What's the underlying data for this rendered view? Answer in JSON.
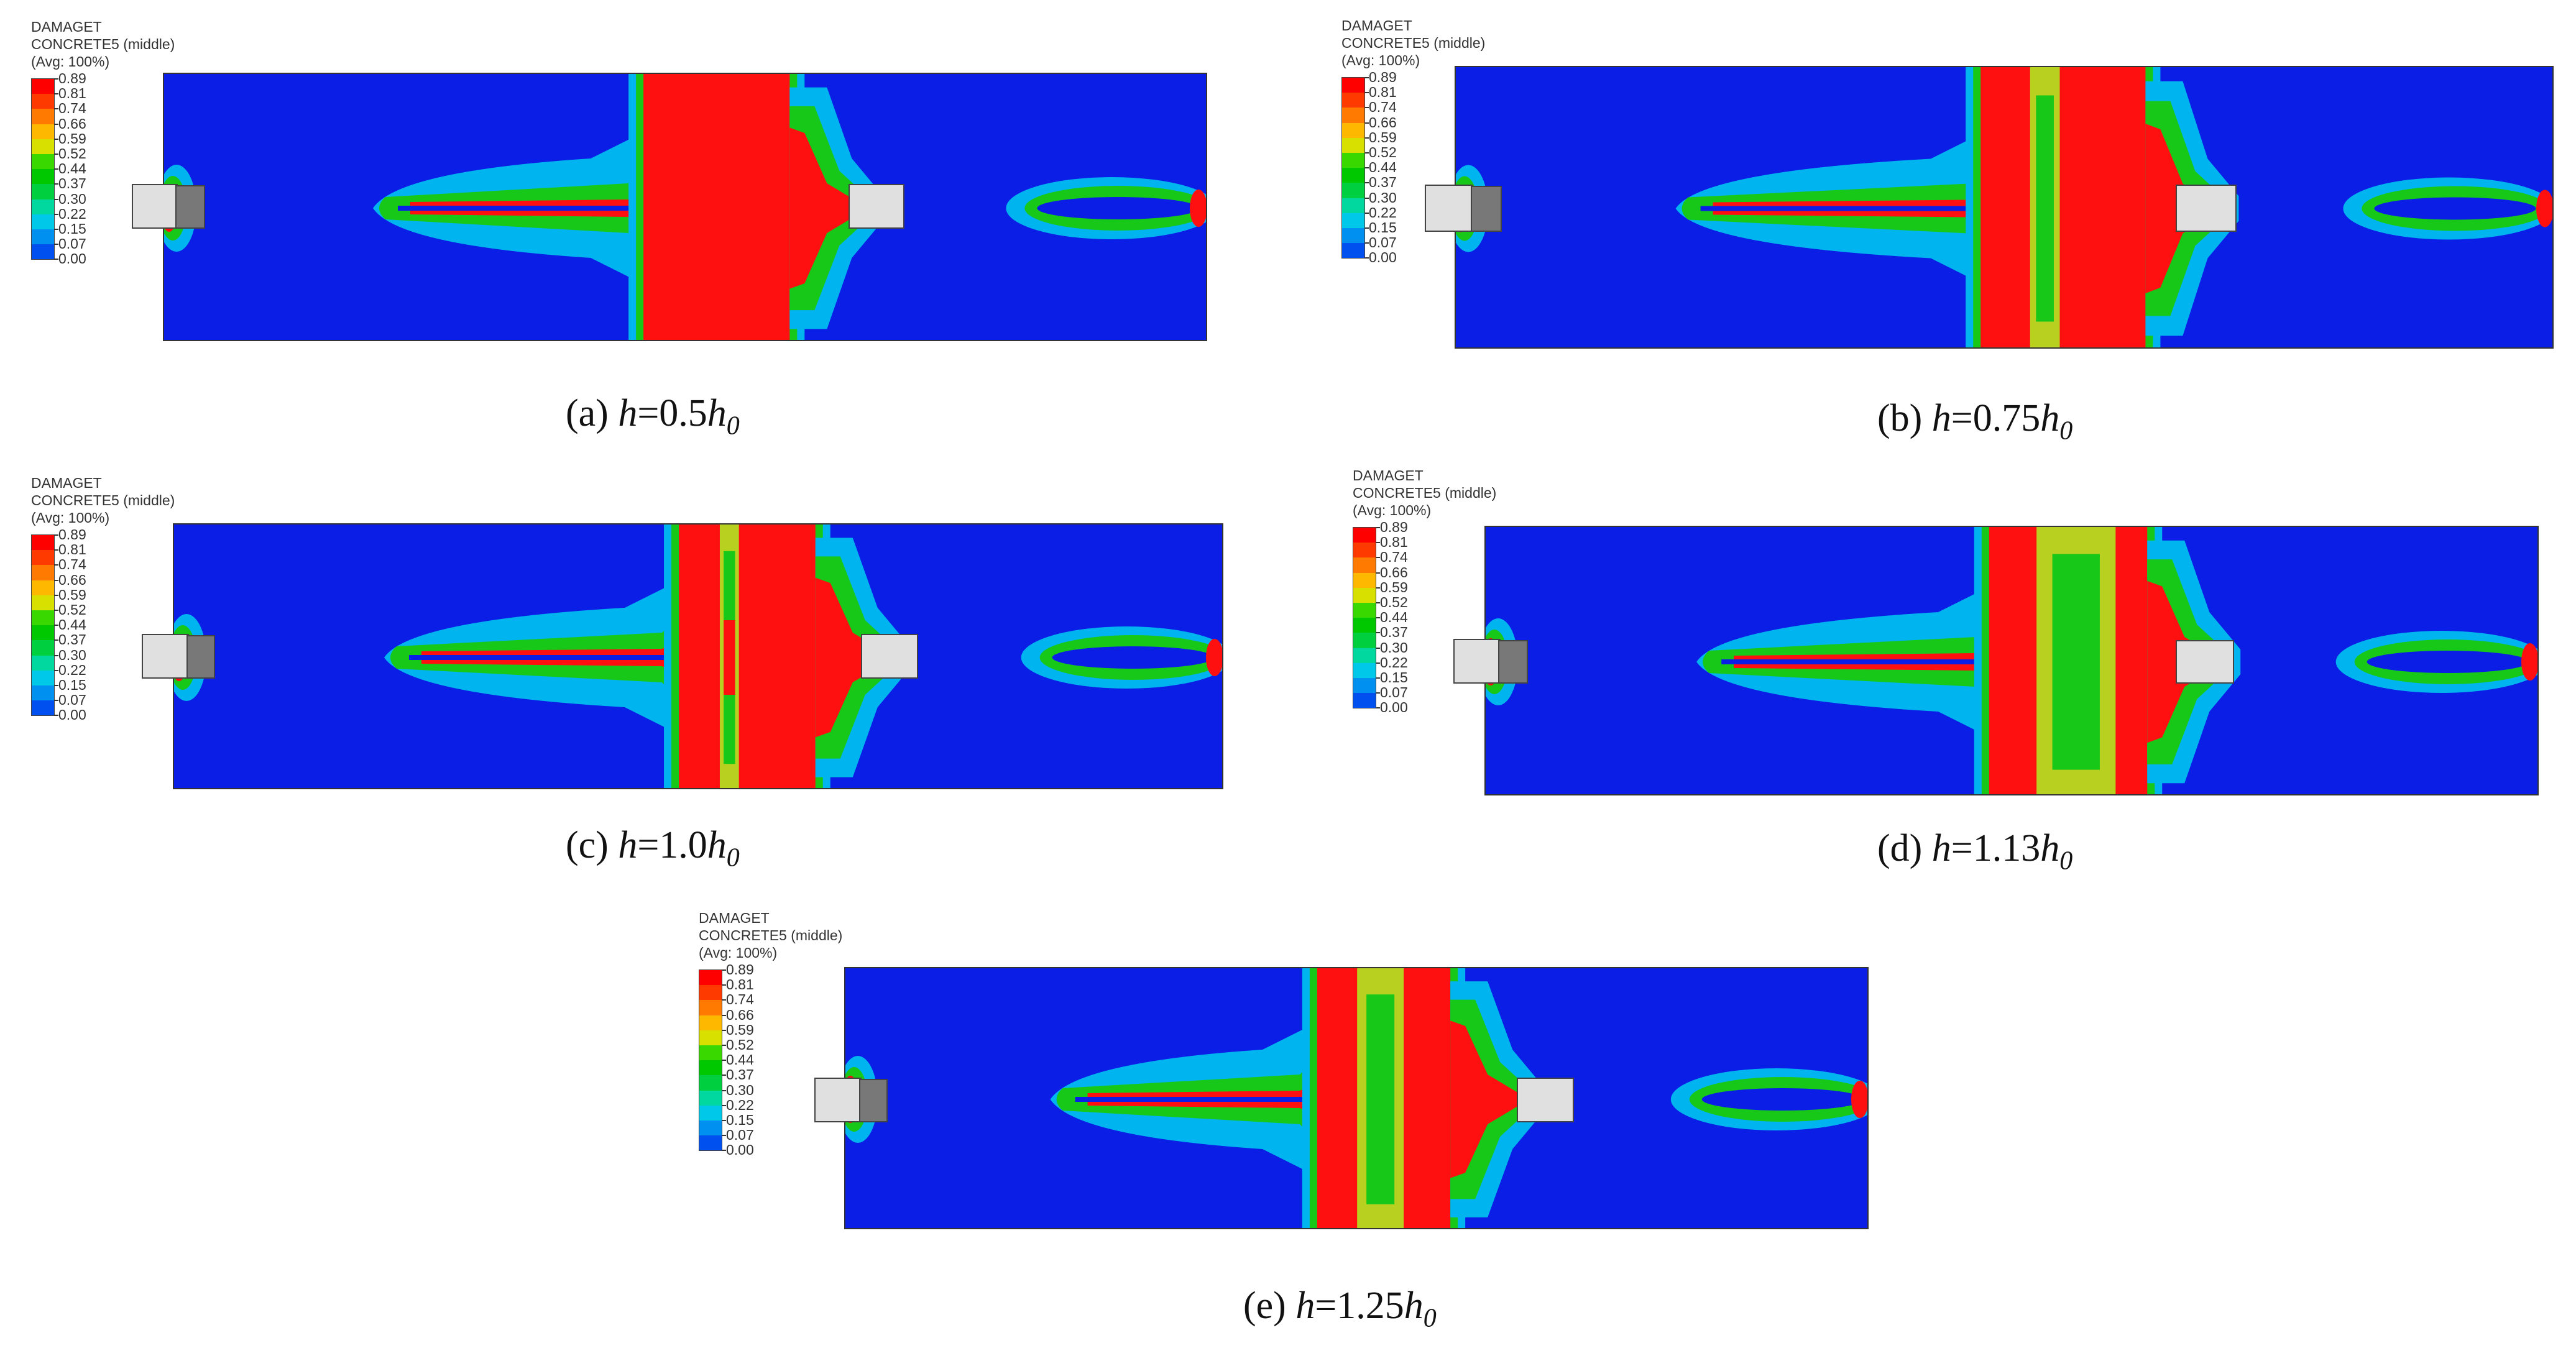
{
  "legend": {
    "line1": "DAMAGET",
    "line2": "CONCRETE5 (middle)",
    "line3": "(Avg: 100%)",
    "ticks": [
      "0.89",
      "0.81",
      "0.74",
      "0.66",
      "0.59",
      "0.52",
      "0.44",
      "0.37",
      "0.30",
      "0.22",
      "0.15",
      "0.07",
      "0.00"
    ],
    "colors": [
      "#ff0000",
      "#ff3a00",
      "#ff7a00",
      "#ffb800",
      "#d8e000",
      "#38d800",
      "#00c800",
      "#00d040",
      "#00d8a0",
      "#00c8e8",
      "#0090f0",
      "#0050f0",
      "#0010e8"
    ]
  },
  "panels": [
    {
      "id": "a",
      "cap_prefix": "(a) ",
      "cap_var": "h",
      "cap_mid": "=0.5",
      "cap_h": "h",
      "cap_sub": "0"
    },
    {
      "id": "b",
      "cap_prefix": "(b) ",
      "cap_var": "h",
      "cap_mid": "=0.75",
      "cap_h": "h",
      "cap_sub": "0"
    },
    {
      "id": "c",
      "cap_prefix": "(c) ",
      "cap_var": "h",
      "cap_mid": "=1.0",
      "cap_h": "h",
      "cap_sub": "0"
    },
    {
      "id": "d",
      "cap_prefix": "(d) ",
      "cap_var": "h",
      "cap_mid": "=1.13",
      "cap_h": "h",
      "cap_sub": "0"
    },
    {
      "id": "e",
      "cap_prefix": "(e) ",
      "cap_var": "h",
      "cap_mid": "=1.25",
      "cap_h": "h",
      "cap_sub": "0"
    }
  ],
  "colors": {
    "background": "#0a1ee6",
    "high": "#ff1010",
    "mid": "#18c818",
    "low": "#00b4f0",
    "yellowgreen": "#b8d020",
    "block_light": "#e0e0e0",
    "block_dark": "#787878"
  }
}
